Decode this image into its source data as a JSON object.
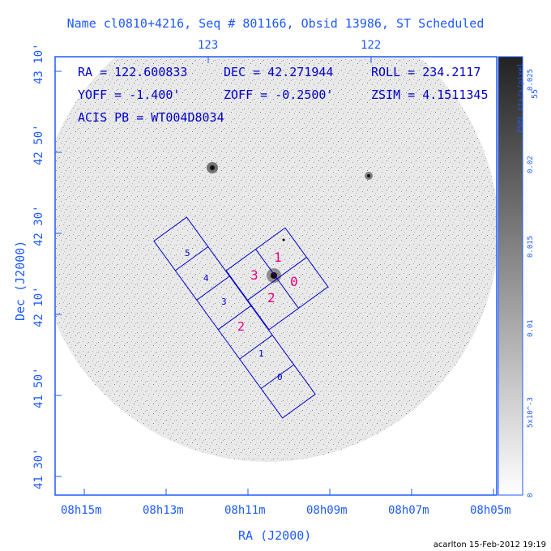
{
  "title": "Name cl0810+4216, Seq # 801166, Obsid 13986, ST Scheduled",
  "top_ticks": [
    "123",
    "122"
  ],
  "ra_ticks": [
    "08h15m",
    "08h13m",
    "08h11m",
    "08h09m",
    "08h07m",
    "08h05m"
  ],
  "dec_ticks": [
    "43 10'",
    "42 50'",
    "42 30'",
    "42 10'",
    "41 50'",
    "41 30'"
  ],
  "xlabel": "RA (J2000)",
  "ylabel": "Dec (J2000)",
  "info": {
    "ra": "RA = 122.600833",
    "dec": "DEC = 42.271944",
    "roll": "ROLL = 234.2117",
    "yoff": "YOFF = -1.400'",
    "zoff": "ZOFF = -0.2500'",
    "zsim": "ZSIM = 4.1511345",
    "acis": "ACIS PB = WT004D8034"
  },
  "colorbar": {
    "label": "PSPC cts/s/pixel",
    "ticks": [
      "0.025",
      "0.02",
      "0.015",
      "0.01",
      "5x10^-3",
      "0"
    ],
    "partial_label": "55"
  },
  "chips": {
    "acis_s": [
      "5",
      "4",
      "3",
      "2",
      "1",
      "0"
    ],
    "acis_i": [
      "1",
      "3",
      "0",
      "2"
    ]
  },
  "footer": "acarlton 15-Feb-2012 19:19",
  "colors": {
    "axis": "#1e5aff",
    "chip_outline": "#0000c8",
    "chip_label": "#e6007e"
  }
}
